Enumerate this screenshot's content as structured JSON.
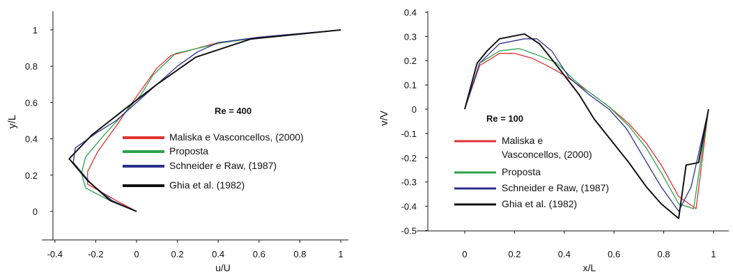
{
  "chart_data": [
    {
      "type": "line",
      "annotation": "Re = 400",
      "xlabel": "u/U",
      "ylabel": "y/L",
      "xlim": [
        -0.4,
        1.0
      ],
      "ylim": [
        0,
        1.0
      ],
      "xticks": [
        "-0.4",
        "-0.2",
        "0",
        "0.2",
        "0.4",
        "0.6",
        "0.8",
        "1"
      ],
      "yticks": [
        "0",
        "0.2",
        "0.4",
        "0.6",
        "0.8",
        "1"
      ],
      "grid": false,
      "legend_position": "center-right",
      "series": [
        {
          "name": "Maliska e Vasconcellos, (2000)",
          "color": "#e03030",
          "points": [
            [
              0,
              0
            ],
            [
              -0.1,
              0.06
            ],
            [
              -0.24,
              0.15
            ],
            [
              -0.24,
              0.22
            ],
            [
              -0.19,
              0.33
            ],
            [
              -0.1,
              0.47
            ],
            [
              -0.04,
              0.57
            ],
            [
              0.03,
              0.68
            ],
            [
              0.1,
              0.79
            ],
            [
              0.17,
              0.86
            ],
            [
              0.4,
              0.93
            ],
            [
              0.55,
              0.95
            ],
            [
              1.0,
              1.0
            ]
          ]
        },
        {
          "name": "Proposta",
          "color": "#2aa34a",
          "points": [
            [
              0,
              0
            ],
            [
              -0.15,
              0.07
            ],
            [
              -0.25,
              0.13
            ],
            [
              -0.27,
              0.21
            ],
            [
              -0.25,
              0.3
            ],
            [
              -0.16,
              0.42
            ],
            [
              -0.07,
              0.53
            ],
            [
              0.02,
              0.64
            ],
            [
              0.08,
              0.75
            ],
            [
              0.19,
              0.87
            ],
            [
              0.42,
              0.93
            ],
            [
              0.55,
              0.95
            ],
            [
              1.0,
              1.0
            ]
          ]
        },
        {
          "name": "Schneider e Raw, (1987)",
          "color": "#2b2f8e",
          "points": [
            [
              0,
              0
            ],
            [
              -0.12,
              0.06
            ],
            [
              -0.22,
              0.15
            ],
            [
              -0.31,
              0.27
            ],
            [
              -0.3,
              0.35
            ],
            [
              -0.2,
              0.43
            ],
            [
              -0.1,
              0.5
            ],
            [
              0,
              0.6
            ],
            [
              0.1,
              0.7
            ],
            [
              0.2,
              0.8
            ],
            [
              0.3,
              0.88
            ],
            [
              0.4,
              0.93
            ],
            [
              0.6,
              0.96
            ],
            [
              1.0,
              1.0
            ]
          ]
        },
        {
          "name": "Ghia et al. (1982)",
          "color": "#111111",
          "points": [
            [
              0,
              0
            ],
            [
              -0.13,
              0.06
            ],
            [
              -0.24,
              0.17
            ],
            [
              -0.33,
              0.29
            ],
            [
              -0.22,
              0.42
            ],
            [
              -0.05,
              0.57
            ],
            [
              0.1,
              0.7
            ],
            [
              0.29,
              0.85
            ],
            [
              0.56,
              0.95
            ],
            [
              1.0,
              1.0
            ]
          ]
        }
      ]
    },
    {
      "type": "line",
      "annotation": "Re = 100",
      "xlabel": "x/L",
      "ylabel": "v/V",
      "xlim": [
        -0.2,
        1.1
      ],
      "ylim": [
        -0.5,
        0.4
      ],
      "xticks": [
        "0",
        "0.2",
        "0.4",
        "0.6",
        "0.8",
        "1"
      ],
      "yticks": [
        "0.4",
        "0.3",
        "0.2",
        "0.1",
        "0",
        "-0.1",
        "-0.2",
        "-0.3",
        "-0.4",
        "-0.5"
      ],
      "grid": false,
      "legend_position": "bottom-left",
      "series": [
        {
          "name": "Maliska e Vasconcellos, (2000)",
          "color": "#e03030",
          "points": [
            [
              0,
              0
            ],
            [
              0.06,
              0.18
            ],
            [
              0.14,
              0.23
            ],
            [
              0.2,
              0.23
            ],
            [
              0.27,
              0.21
            ],
            [
              0.33,
              0.18
            ],
            [
              0.4,
              0.14
            ],
            [
              0.5,
              0.07
            ],
            [
              0.58,
              0.01
            ],
            [
              0.66,
              -0.06
            ],
            [
              0.73,
              -0.14
            ],
            [
              0.79,
              -0.23
            ],
            [
              0.86,
              -0.36
            ],
            [
              0.93,
              -0.41
            ],
            [
              0.98,
              0.0
            ]
          ]
        },
        {
          "name": "Proposta",
          "color": "#2aa34a",
          "points": [
            [
              0,
              0
            ],
            [
              0.06,
              0.19
            ],
            [
              0.14,
              0.24
            ],
            [
              0.22,
              0.25
            ],
            [
              0.3,
              0.22
            ],
            [
              0.37,
              0.19
            ],
            [
              0.44,
              0.12
            ],
            [
              0.5,
              0.07
            ],
            [
              0.58,
              0.01
            ],
            [
              0.66,
              -0.07
            ],
            [
              0.73,
              -0.16
            ],
            [
              0.8,
              -0.28
            ],
            [
              0.86,
              -0.39
            ],
            [
              0.92,
              -0.41
            ],
            [
              0.98,
              0.0
            ]
          ]
        },
        {
          "name": "Schneider e Raw, (1987)",
          "color": "#2b2f8e",
          "points": [
            [
              0,
              0
            ],
            [
              0.06,
              0.19
            ],
            [
              0.14,
              0.27
            ],
            [
              0.24,
              0.29
            ],
            [
              0.29,
              0.29
            ],
            [
              0.35,
              0.24
            ],
            [
              0.42,
              0.13
            ],
            [
              0.5,
              0.06
            ],
            [
              0.58,
              0.0
            ],
            [
              0.65,
              -0.08
            ],
            [
              0.72,
              -0.2
            ],
            [
              0.79,
              -0.32
            ],
            [
              0.86,
              -0.42
            ],
            [
              0.91,
              -0.32
            ],
            [
              0.98,
              0.0
            ]
          ]
        },
        {
          "name": "Ghia et al. (1982)",
          "color": "#111111",
          "points": [
            [
              0,
              0
            ],
            [
              0.05,
              0.19
            ],
            [
              0.09,
              0.24
            ],
            [
              0.14,
              0.29
            ],
            [
              0.24,
              0.31
            ],
            [
              0.3,
              0.27
            ],
            [
              0.37,
              0.18
            ],
            [
              0.46,
              0.06
            ],
            [
              0.52,
              -0.04
            ],
            [
              0.59,
              -0.13
            ],
            [
              0.66,
              -0.22
            ],
            [
              0.73,
              -0.32
            ],
            [
              0.79,
              -0.39
            ],
            [
              0.86,
              -0.45
            ],
            [
              0.89,
              -0.23
            ],
            [
              0.94,
              -0.22
            ],
            [
              0.98,
              0.0
            ]
          ]
        }
      ]
    }
  ]
}
